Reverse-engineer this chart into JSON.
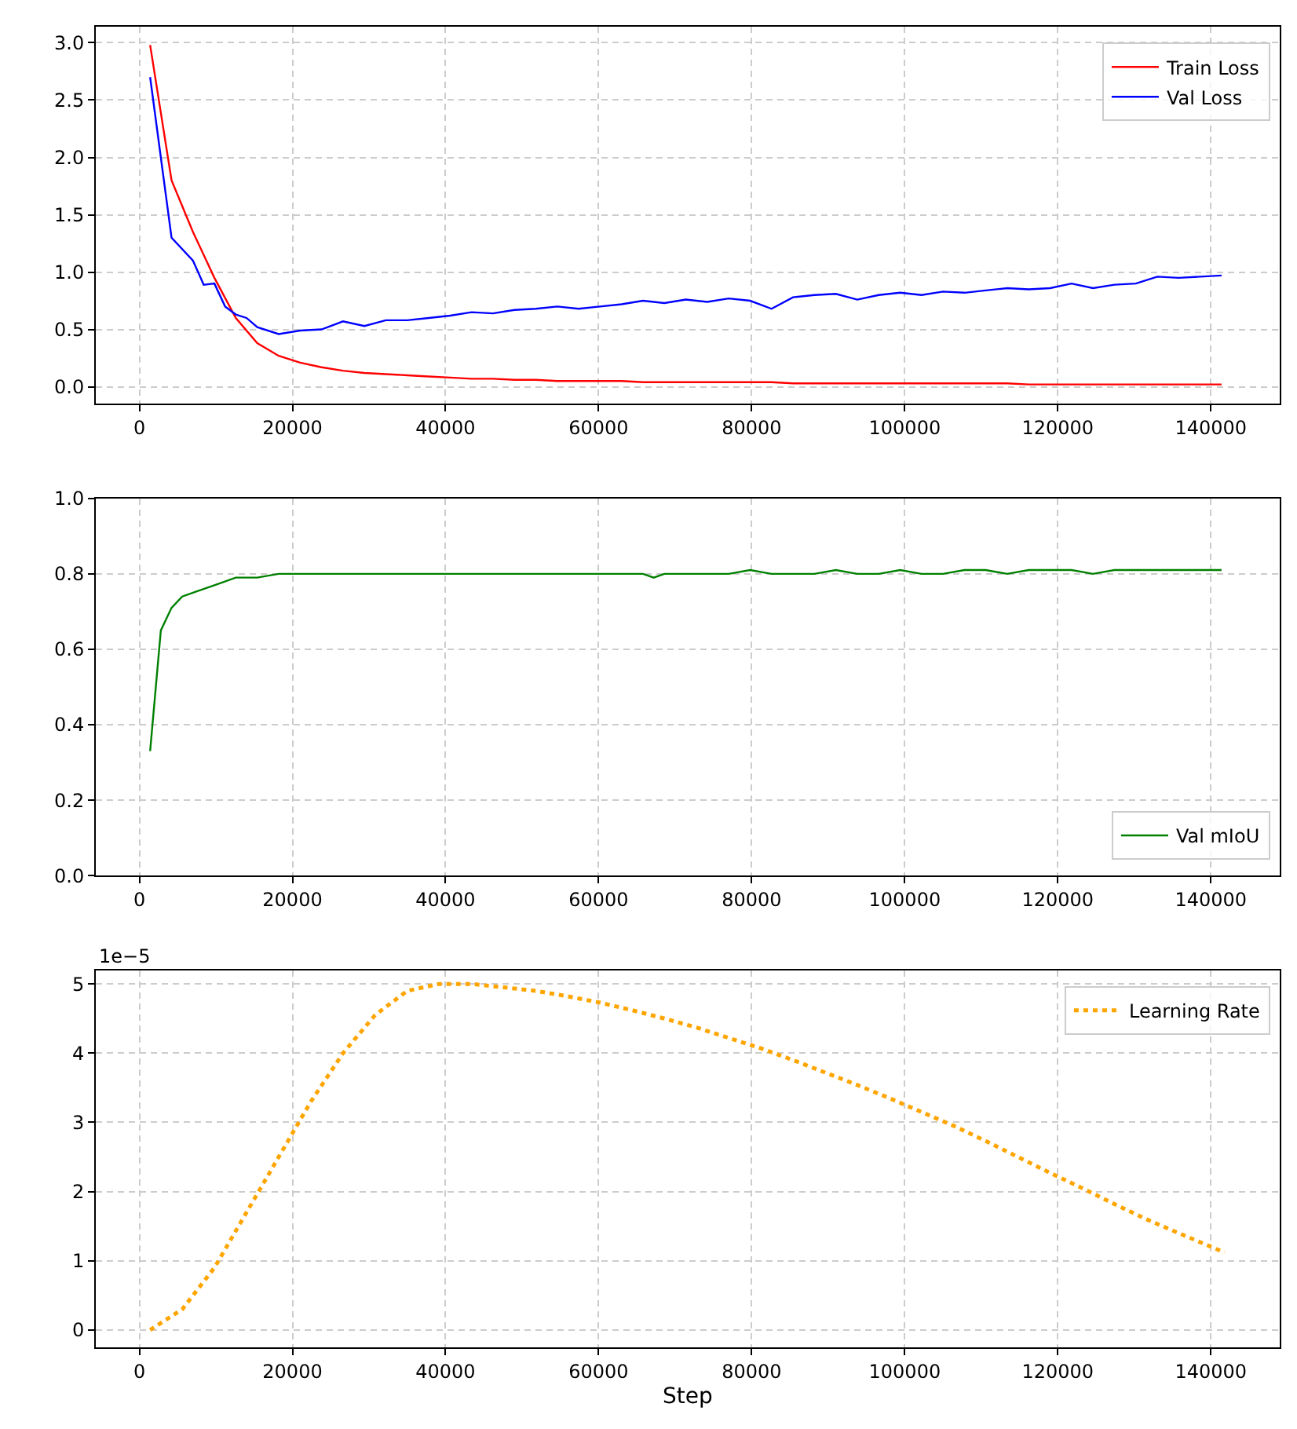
{
  "chart_data": [
    {
      "type": "line",
      "xlim": [
        -5700,
        149000
      ],
      "xticks": [
        0,
        20000,
        40000,
        60000,
        80000,
        100000,
        120000,
        140000
      ],
      "ylim": [
        -0.15,
        3.14
      ],
      "yticks": [
        {
          "value": 0,
          "label": "0.0"
        },
        {
          "value": 0.5,
          "label": "0.5"
        },
        {
          "value": 1,
          "label": "1.0"
        },
        {
          "value": 1.5,
          "label": "1.5"
        },
        {
          "value": 2,
          "label": "2.0"
        },
        {
          "value": 2.5,
          "label": "2.5"
        },
        {
          "value": 3,
          "label": "3.0"
        }
      ],
      "grid": true,
      "legend": "top right",
      "line_style": "solid",
      "marker": "none",
      "series": [
        {
          "name": "Train Loss",
          "color": "#ff0000",
          "x": [
            1400,
            4200,
            7000,
            9800,
            12600,
            15400,
            18200,
            21000,
            23800,
            26600,
            29400,
            32200,
            35000,
            37800,
            40600,
            43400,
            46200,
            49000,
            51800,
            54600,
            57400,
            60200,
            63000,
            65800,
            68600,
            71400,
            74200,
            77000,
            79800,
            82600,
            85400,
            88200,
            91000,
            93800,
            96600,
            99400,
            102200,
            105000,
            107800,
            110600,
            113400,
            116200,
            119000,
            121800,
            124600,
            127400,
            130200,
            133000,
            135800,
            138600,
            141400
          ],
          "values": [
            2.98,
            1.8,
            1.35,
            0.95,
            0.6,
            0.38,
            0.27,
            0.21,
            0.17,
            0.14,
            0.12,
            0.11,
            0.1,
            0.09,
            0.08,
            0.07,
            0.07,
            0.06,
            0.06,
            0.05,
            0.05,
            0.05,
            0.05,
            0.04,
            0.04,
            0.04,
            0.04,
            0.04,
            0.04,
            0.04,
            0.03,
            0.03,
            0.03,
            0.03,
            0.03,
            0.03,
            0.03,
            0.03,
            0.03,
            0.03,
            0.03,
            0.02,
            0.02,
            0.02,
            0.02,
            0.02,
            0.02,
            0.02,
            0.02,
            0.02,
            0.02
          ]
        },
        {
          "name": "Val Loss",
          "color": "#0000ff",
          "x": [
            1400,
            4200,
            7000,
            8400,
            9800,
            11200,
            12600,
            14000,
            15400,
            18200,
            21000,
            23800,
            26600,
            29400,
            32200,
            35000,
            37800,
            40600,
            43400,
            46200,
            49000,
            51800,
            54600,
            57400,
            60200,
            63000,
            65800,
            68600,
            71400,
            74200,
            77000,
            79800,
            82600,
            85400,
            88200,
            91000,
            93800,
            96600,
            99400,
            102200,
            105000,
            107800,
            110600,
            113400,
            116200,
            119000,
            121800,
            124600,
            127400,
            130200,
            133000,
            135800,
            138600,
            141400
          ],
          "values": [
            2.7,
            1.3,
            1.1,
            0.89,
            0.9,
            0.7,
            0.63,
            0.6,
            0.52,
            0.46,
            0.49,
            0.5,
            0.57,
            0.53,
            0.58,
            0.58,
            0.6,
            0.62,
            0.65,
            0.64,
            0.67,
            0.68,
            0.7,
            0.68,
            0.7,
            0.72,
            0.75,
            0.73,
            0.76,
            0.74,
            0.77,
            0.75,
            0.68,
            0.78,
            0.8,
            0.81,
            0.76,
            0.8,
            0.82,
            0.8,
            0.83,
            0.82,
            0.84,
            0.86,
            0.85,
            0.86,
            0.9,
            0.86,
            0.89,
            0.9,
            0.96,
            0.95,
            0.96,
            0.97
          ]
        }
      ]
    },
    {
      "type": "line",
      "xlim": [
        -5700,
        149000
      ],
      "xticks": [
        0,
        20000,
        40000,
        60000,
        80000,
        100000,
        120000,
        140000
      ],
      "ylim": [
        0,
        1
      ],
      "yticks": [
        {
          "value": 0,
          "label": "0.0"
        },
        {
          "value": 0.2,
          "label": "0.2"
        },
        {
          "value": 0.4,
          "label": "0.4"
        },
        {
          "value": 0.6,
          "label": "0.6"
        },
        {
          "value": 0.8,
          "label": "0.8"
        },
        {
          "value": 1,
          "label": "1.0"
        }
      ],
      "grid": true,
      "legend": "bottom right",
      "line_style": "solid",
      "marker": "none",
      "series": [
        {
          "name": "Val mIoU",
          "color": "#008000",
          "x": [
            1400,
            2800,
            4200,
            5600,
            7000,
            9800,
            12600,
            15400,
            18200,
            21000,
            23800,
            26600,
            29400,
            32200,
            35000,
            37800,
            40600,
            43400,
            46200,
            49000,
            51800,
            54600,
            57400,
            60200,
            63000,
            65800,
            67200,
            68600,
            71400,
            74200,
            77000,
            79800,
            82600,
            85400,
            88200,
            91000,
            93800,
            96600,
            99400,
            102200,
            105000,
            107800,
            110600,
            113400,
            116200,
            119000,
            121800,
            124600,
            127400,
            130200,
            133000,
            135800,
            138600,
            141400
          ],
          "values": [
            0.33,
            0.65,
            0.71,
            0.74,
            0.75,
            0.77,
            0.79,
            0.79,
            0.8,
            0.8,
            0.8,
            0.8,
            0.8,
            0.8,
            0.8,
            0.8,
            0.8,
            0.8,
            0.8,
            0.8,
            0.8,
            0.8,
            0.8,
            0.8,
            0.8,
            0.8,
            0.79,
            0.8,
            0.8,
            0.8,
            0.8,
            0.81,
            0.8,
            0.8,
            0.8,
            0.81,
            0.8,
            0.8,
            0.81,
            0.8,
            0.8,
            0.81,
            0.81,
            0.8,
            0.81,
            0.81,
            0.81,
            0.8,
            0.81,
            0.81,
            0.81,
            0.81,
            0.81,
            0.81
          ]
        }
      ]
    },
    {
      "type": "line",
      "xlim": [
        -5700,
        149000
      ],
      "xticks": [
        0,
        20000,
        40000,
        60000,
        80000,
        100000,
        120000,
        140000
      ],
      "ylim": [
        -0.25,
        5.2
      ],
      "yticks": [
        0,
        1,
        2,
        3,
        4,
        5
      ],
      "xlabel": "Step",
      "annotations": [
        "1e−5"
      ],
      "grid": true,
      "legend": "top right",
      "line_style": "dotted",
      "marker": "none",
      "series": [
        {
          "name": "Learning Rate",
          "color": "#ffa500",
          "x": [
            1400,
            5600,
            9800,
            14000,
            18200,
            22400,
            26600,
            30800,
            35000,
            39200,
            43400,
            47600,
            51800,
            56000,
            60200,
            64400,
            68600,
            72800,
            77000,
            81200,
            85400,
            89600,
            93800,
            98000,
            102200,
            106400,
            110600,
            114800,
            119000,
            123200,
            127400,
            131600,
            135800,
            141800
          ],
          "values": [
            0,
            0.3,
            0.9,
            1.7,
            2.5,
            3.3,
            4,
            4.55,
            4.9,
            5,
            5,
            4.95,
            4.9,
            4.82,
            4.73,
            4.62,
            4.5,
            4.37,
            4.22,
            4.07,
            3.9,
            3.72,
            3.54,
            3.35,
            3.15,
            2.95,
            2.73,
            2.5,
            2.27,
            2.05,
            1.82,
            1.6,
            1.4,
            1.12
          ]
        }
      ]
    }
  ]
}
